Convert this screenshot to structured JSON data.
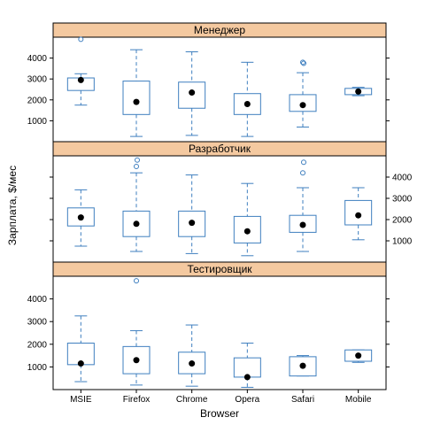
{
  "chart_data": {
    "type": "boxplot",
    "xlabel": "Browser",
    "ylabel": "Зарплата, $/мес",
    "categories": [
      "MSIE",
      "Firefox",
      "Chrome",
      "Opera",
      "Safari",
      "Mobile"
    ],
    "yticks": [
      1000,
      2000,
      3000,
      4000
    ],
    "ylim": [
      0,
      5000
    ],
    "colors": {
      "box": "#3f7fbf",
      "strip": "#f4c9a0",
      "median": "#000000"
    },
    "panels": [
      {
        "title": "Менеджер",
        "boxes": [
          {
            "category": "MSIE",
            "whisker_low": 1750,
            "q1": 2450,
            "median": 2950,
            "q3": 3050,
            "whisker_high": 3250,
            "outliers": [
              4900
            ]
          },
          {
            "category": "Firefox",
            "whisker_low": 250,
            "q1": 1300,
            "median": 1900,
            "q3": 2900,
            "whisker_high": 4400,
            "outliers": []
          },
          {
            "category": "Chrome",
            "whisker_low": 300,
            "q1": 1600,
            "median": 2350,
            "q3": 2850,
            "whisker_high": 4300,
            "outliers": []
          },
          {
            "category": "Opera",
            "whisker_low": 250,
            "q1": 1300,
            "median": 1800,
            "q3": 2300,
            "whisker_high": 3800,
            "outliers": []
          },
          {
            "category": "Safari",
            "whisker_low": 700,
            "q1": 1450,
            "median": 1750,
            "q3": 2250,
            "whisker_high": 3300,
            "outliers": [
              3800,
              3750
            ]
          },
          {
            "category": "Mobile",
            "whisker_low": 2200,
            "q1": 2250,
            "median": 2400,
            "q3": 2550,
            "whisker_high": 2600,
            "outliers": []
          }
        ]
      },
      {
        "title": "Разработчик",
        "boxes": [
          {
            "category": "MSIE",
            "whisker_low": 750,
            "q1": 1700,
            "median": 2100,
            "q3": 2550,
            "whisker_high": 3400,
            "outliers": []
          },
          {
            "category": "Firefox",
            "whisker_low": 500,
            "q1": 1200,
            "median": 1800,
            "q3": 2400,
            "whisker_high": 4200,
            "outliers": [
              4500,
              4800
            ]
          },
          {
            "category": "Chrome",
            "whisker_low": 400,
            "q1": 1200,
            "median": 1850,
            "q3": 2400,
            "whisker_high": 4100,
            "outliers": []
          },
          {
            "category": "Opera",
            "whisker_low": 300,
            "q1": 900,
            "median": 1450,
            "q3": 2150,
            "whisker_high": 3700,
            "outliers": []
          },
          {
            "category": "Safari",
            "whisker_low": 500,
            "q1": 1400,
            "median": 1750,
            "q3": 2200,
            "whisker_high": 3500,
            "outliers": [
              4200,
              4700
            ]
          },
          {
            "category": "Mobile",
            "whisker_low": 1050,
            "q1": 1750,
            "median": 2200,
            "q3": 2900,
            "whisker_high": 3500,
            "outliers": []
          }
        ]
      },
      {
        "title": "Тестировщик",
        "boxes": [
          {
            "category": "MSIE",
            "whisker_low": 350,
            "q1": 1100,
            "median": 1150,
            "q3": 2050,
            "whisker_high": 3250,
            "outliers": []
          },
          {
            "category": "Firefox",
            "whisker_low": 200,
            "q1": 700,
            "median": 1300,
            "q3": 1900,
            "whisker_high": 2600,
            "outliers": [
              4800
            ]
          },
          {
            "category": "Chrome",
            "whisker_low": 150,
            "q1": 700,
            "median": 1150,
            "q3": 1650,
            "whisker_high": 2850,
            "outliers": []
          },
          {
            "category": "Opera",
            "whisker_low": 100,
            "q1": 550,
            "median": 550,
            "q3": 1400,
            "whisker_high": 2050,
            "outliers": []
          },
          {
            "category": "Safari",
            "whisker_low": 600,
            "q1": 600,
            "median": 1050,
            "q3": 1450,
            "whisker_high": 1500,
            "outliers": []
          },
          {
            "category": "Mobile",
            "whisker_low": 1200,
            "q1": 1250,
            "median": 1500,
            "q3": 1750,
            "whisker_high": 1750,
            "outliers": []
          }
        ]
      }
    ]
  }
}
